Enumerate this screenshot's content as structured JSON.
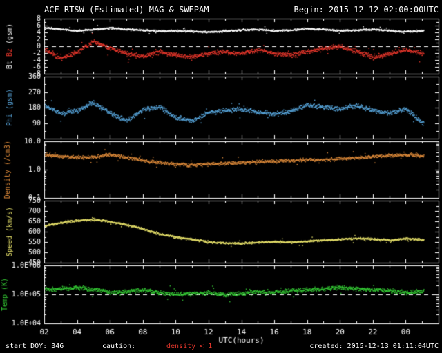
{
  "header": {
    "title": "ACE RTSW (Estimated) MAG & SWEPAM",
    "begin": "Begin: 2015-12-12 02:00:00UTC"
  },
  "footer": {
    "start_doy": "start DOY: 346",
    "caution_label": "caution:",
    "caution_value": "density < 1",
    "created": "created: 2015-12-13 01:11:04UTC"
  },
  "colors": {
    "background": "#000000",
    "axis": "#ffffff",
    "red": "#e8372c",
    "blue": "#58a6dc",
    "orange": "#dd8a3a",
    "yellow": "#e6e06a",
    "green": "#35cc35"
  },
  "chart_data": {
    "type": "scatter",
    "title": "ACE RTSW (Estimated) MAG & SWEPAM",
    "grid": false,
    "legend": "none",
    "x_axis": {
      "label": "UTC(hours)",
      "start_hour": 2,
      "end_hour": 26,
      "data_end_hour": 25.1,
      "minor_tick_every_hours": 1,
      "major_tick_every_hours": 2,
      "ticks": [
        {
          "h": 2,
          "label": "02"
        },
        {
          "h": 4,
          "label": "04"
        },
        {
          "h": 6,
          "label": "06"
        },
        {
          "h": 8,
          "label": "08"
        },
        {
          "h": 10,
          "label": "10"
        },
        {
          "h": 12,
          "label": "12"
        },
        {
          "h": 14,
          "label": "14"
        },
        {
          "h": 16,
          "label": "16"
        },
        {
          "h": 18,
          "label": "18"
        },
        {
          "h": 20,
          "label": "20"
        },
        {
          "h": 22,
          "label": "22"
        },
        {
          "h": 24,
          "label": "00"
        }
      ]
    },
    "panels": [
      {
        "name": "mag-bt-bz",
        "scale": "linear",
        "ymin": -8,
        "ymax": 8,
        "yminor_step": 1,
        "dashed_at": 0,
        "yticks": [
          {
            "v": 8,
            "label": "8"
          },
          {
            "v": 6,
            "label": "6"
          },
          {
            "v": 4,
            "label": "4"
          },
          {
            "v": 2,
            "label": "2"
          },
          {
            "v": 0,
            "label": "0"
          },
          {
            "v": -2,
            "label": "-2"
          },
          {
            "v": -4,
            "label": "-4"
          },
          {
            "v": -6,
            "label": "-6"
          },
          {
            "v": -8,
            "label": "-8"
          }
        ],
        "ylabel_parts": [
          {
            "text": "Bt ",
            "color": "#ffffff"
          },
          {
            "text": "Bz ",
            "color": "#e8372c"
          },
          {
            "text": "(gsm)",
            "color": "#ffffff"
          }
        ],
        "series": [
          {
            "name": "Bt",
            "color": "#ffffff",
            "jitter": 0.4,
            "hourly": [
              5.5,
              5.0,
              4.6,
              5.0,
              5.4,
              5.0,
              4.8,
              4.5,
              4.6,
              4.4,
              4.2,
              4.5,
              4.8,
              5.0,
              4.6,
              4.8,
              5.2,
              5.0,
              4.6,
              4.8,
              5.0,
              4.6,
              4.3,
              4.6,
              5.0
            ]
          },
          {
            "name": "Bz",
            "color": "#e8372c",
            "jitter": 1.0,
            "hourly": [
              -1.0,
              -3.5,
              -1.5,
              1.5,
              -0.5,
              -2.0,
              -3.0,
              -1.5,
              -2.5,
              -3.0,
              -2.0,
              -1.5,
              -2.0,
              -1.0,
              -2.0,
              -2.5,
              -1.5,
              -0.5,
              0.0,
              -1.5,
              -3.0,
              -2.0,
              -1.0,
              -2.0,
              -1.0
            ]
          }
        ]
      },
      {
        "name": "phi",
        "scale": "linear",
        "ymin": 0,
        "ymax": 360,
        "yminor_step": 45,
        "dashed_at": null,
        "yticks": [
          {
            "v": 360,
            "label": "360"
          },
          {
            "v": 270,
            "label": "270"
          },
          {
            "v": 180,
            "label": "180"
          },
          {
            "v": 90,
            "label": "90"
          }
        ],
        "ylabel_parts": [
          {
            "text": "Phi (gsm)",
            "color": "#58a6dc"
          }
        ],
        "series": [
          {
            "name": "Phi",
            "color": "#58a6dc",
            "jitter": 20,
            "hourly": [
              190,
              150,
              165,
              210,
              150,
              105,
              170,
              185,
              125,
              105,
              155,
              165,
              175,
              155,
              145,
              160,
              200,
              185,
              175,
              195,
              165,
              150,
              175,
              95,
              145
            ]
          }
        ]
      },
      {
        "name": "density",
        "scale": "log",
        "ymin": 0.1,
        "ymax": 10,
        "dashed_at": null,
        "yticks": [
          {
            "v": 10,
            "label": "10.0"
          },
          {
            "v": 1,
            "label": "1.0"
          },
          {
            "v": 0.1,
            "label": "0.1"
          }
        ],
        "ylabel_parts": [
          {
            "text": "Density (/cm3)",
            "color": "#dd8a3a"
          }
        ],
        "series": [
          {
            "name": "Density",
            "color": "#dd8a3a",
            "jitter": 0.09,
            "hourly": [
              3.5,
              3.0,
              2.8,
              2.8,
              3.5,
              2.8,
              2.2,
              1.8,
              1.6,
              1.5,
              1.6,
              1.7,
              1.8,
              2.0,
              2.0,
              2.2,
              2.3,
              2.3,
              2.5,
              2.7,
              3.0,
              3.2,
              3.5,
              3.2,
              3.0
            ]
          }
        ]
      },
      {
        "name": "speed",
        "scale": "linear",
        "ymin": 450,
        "ymax": 750,
        "yminor_step": 25,
        "dashed_at": null,
        "yticks": [
          {
            "v": 750,
            "label": "750"
          },
          {
            "v": 700,
            "label": "700"
          },
          {
            "v": 650,
            "label": "650"
          },
          {
            "v": 600,
            "label": "600"
          },
          {
            "v": 550,
            "label": "550"
          },
          {
            "v": 500,
            "label": "500"
          },
          {
            "v": 450,
            "label": "450"
          }
        ],
        "ylabel_parts": [
          {
            "text": "Speed (km/s)",
            "color": "#e6e06a"
          }
        ],
        "series": [
          {
            "name": "Speed",
            "color": "#e6e06a",
            "jitter": 8,
            "hourly": [
              630,
              645,
              655,
              660,
              650,
              635,
              615,
              590,
              575,
              565,
              552,
              546,
              545,
              550,
              553,
              550,
              556,
              560,
              565,
              570,
              566,
              560,
              568,
              562,
              565
            ]
          }
        ]
      },
      {
        "name": "temp",
        "scale": "log",
        "ymin": 10000,
        "ymax": 1000000,
        "dashed_at": 100000,
        "yticks": [
          {
            "v": 1000000,
            "label": "1.0E+06"
          },
          {
            "v": 100000,
            "label": "1.0E+05"
          },
          {
            "v": 10000,
            "label": "1.0E+04"
          }
        ],
        "ylabel_parts": [
          {
            "text": "Temp (K)",
            "color": "#35cc35"
          }
        ],
        "series": [
          {
            "name": "Temp",
            "color": "#35cc35",
            "jitter": 0.11,
            "hourly": [
              150000,
              160000,
              180000,
              150000,
              120000,
              130000,
              150000,
              120000,
              100000,
              110000,
              120000,
              100000,
              110000,
              130000,
              120000,
              140000,
              150000,
              160000,
              180000,
              160000,
              150000,
              140000,
              120000,
              130000,
              150000
            ]
          }
        ]
      }
    ]
  }
}
